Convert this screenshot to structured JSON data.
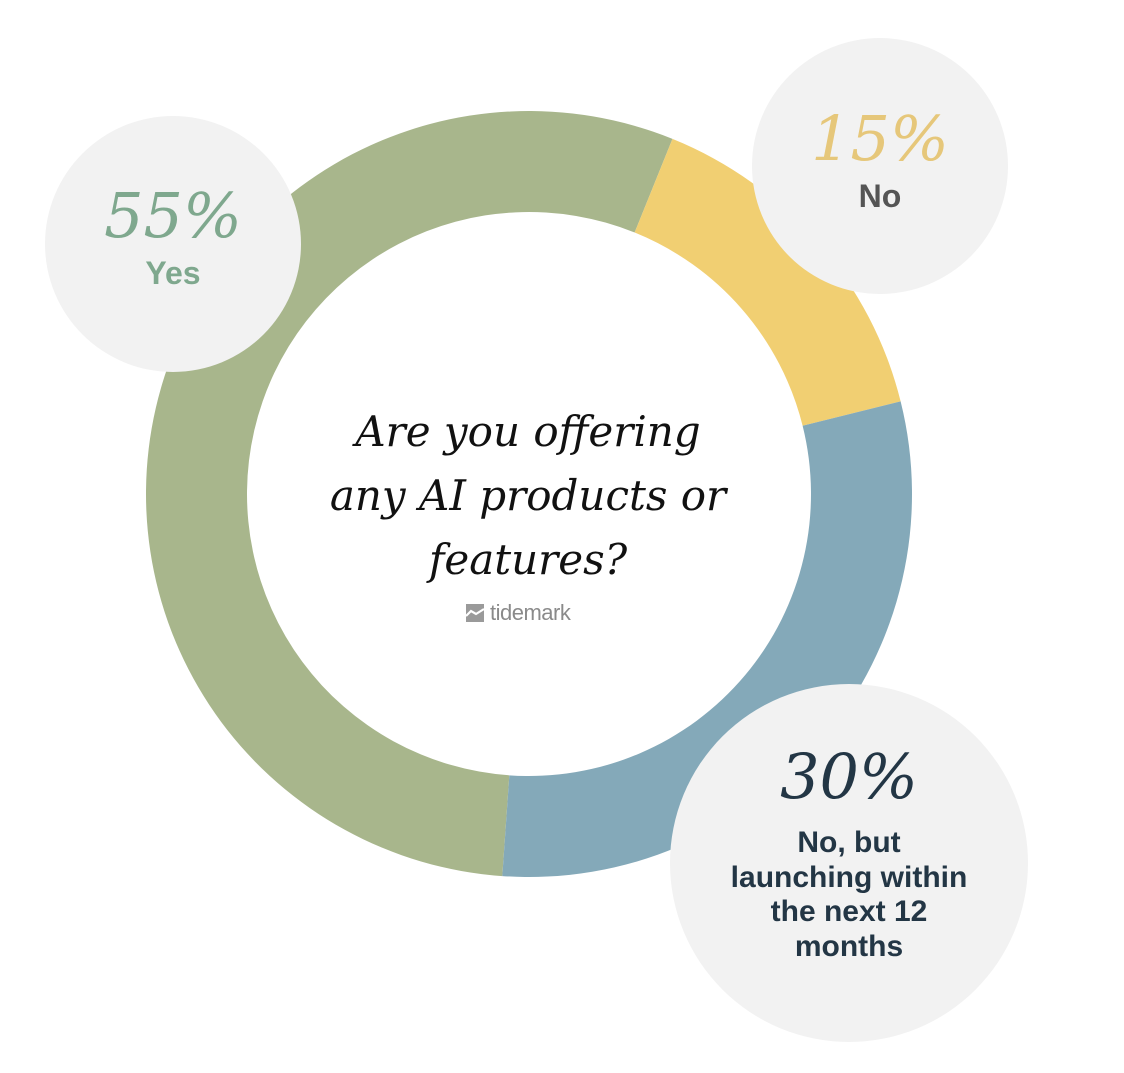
{
  "chart_data": {
    "type": "pie",
    "style": "donut",
    "title": "Are you offering any AI products or features?",
    "slices": [
      {
        "label": "Yes",
        "value": 55,
        "display": "55%",
        "color": "#a8b68c",
        "text_color": "#7fa88e"
      },
      {
        "label": "No",
        "value": 15,
        "display": "15%",
        "color": "#f1cf72",
        "text_color": "#e6c77a"
      },
      {
        "label": "No, but launching within the next 12 months",
        "value": 30,
        "display": "30%",
        "color": "#84a9b9",
        "text_color": "#233645"
      }
    ]
  },
  "brand": {
    "name": "tidemark",
    "icon": "mountain-logo-icon"
  },
  "colors": {
    "bubble_bg": "#f2f2f2",
    "label_no": "#555555"
  }
}
